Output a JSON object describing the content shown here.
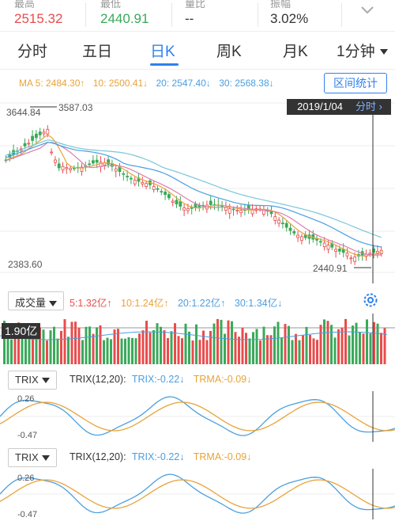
{
  "stats": [
    {
      "label": "最高",
      "value": "2515.32",
      "color": "#e94c4c"
    },
    {
      "label": "最低",
      "value": "2440.91",
      "color": "#3aa95a"
    },
    {
      "label": "量比",
      "value": "--",
      "color": "#333333"
    },
    {
      "label": "振幅",
      "value": "3.02%",
      "color": "#333333"
    }
  ],
  "tabs": [
    {
      "label": "分时",
      "active": false
    },
    {
      "label": "五日",
      "active": false
    },
    {
      "label": "日K",
      "active": true
    },
    {
      "label": "周K",
      "active": false
    },
    {
      "label": "月K",
      "active": false
    },
    {
      "label": "1分钟",
      "active": false
    }
  ],
  "ma": {
    "ma5": "MA 5: 2484.30↑",
    "ma10": "10: 2500.41↓",
    "ma20": "20: 2547.40↓",
    "ma30": "30: 2568.38↓"
  },
  "interval_button": "区间统计",
  "kchart": {
    "high_axis": "3644.84",
    "peak_label": "3587.03",
    "low_axis": "2383.60",
    "low_label": "2440.91",
    "date": "2019/1/04",
    "period": "分时",
    "series_colors": {
      "ma5": "#e8a33a",
      "ma10": "#e8a33a",
      "ma20": "#4a9fe0",
      "ma30": "#7ac6d8",
      "up": "#e94c4c",
      "down": "#3aa95a"
    }
  },
  "volume": {
    "select_label": "成交量",
    "v5": "5:1.32亿↑",
    "v10": "10:1.24亿↑",
    "v20": "20:1.22亿↑",
    "v30": "30:1.34亿↓",
    "current": "1.90亿"
  },
  "trix1": {
    "select_label": "TRIX",
    "name": "TRIX(12,20):",
    "trix": "TRIX:-0.22↓",
    "trma": "TRMA:-0.09↓",
    "top": "0.26",
    "bottom": "-0.47"
  },
  "trix2": {
    "select_label": "TRIX",
    "name": "TRIX(12,20):",
    "trix": "TRIX:-0.22↓",
    "trma": "TRMA:-0.09↓",
    "top": "0.26",
    "bottom": "-0.47"
  }
}
